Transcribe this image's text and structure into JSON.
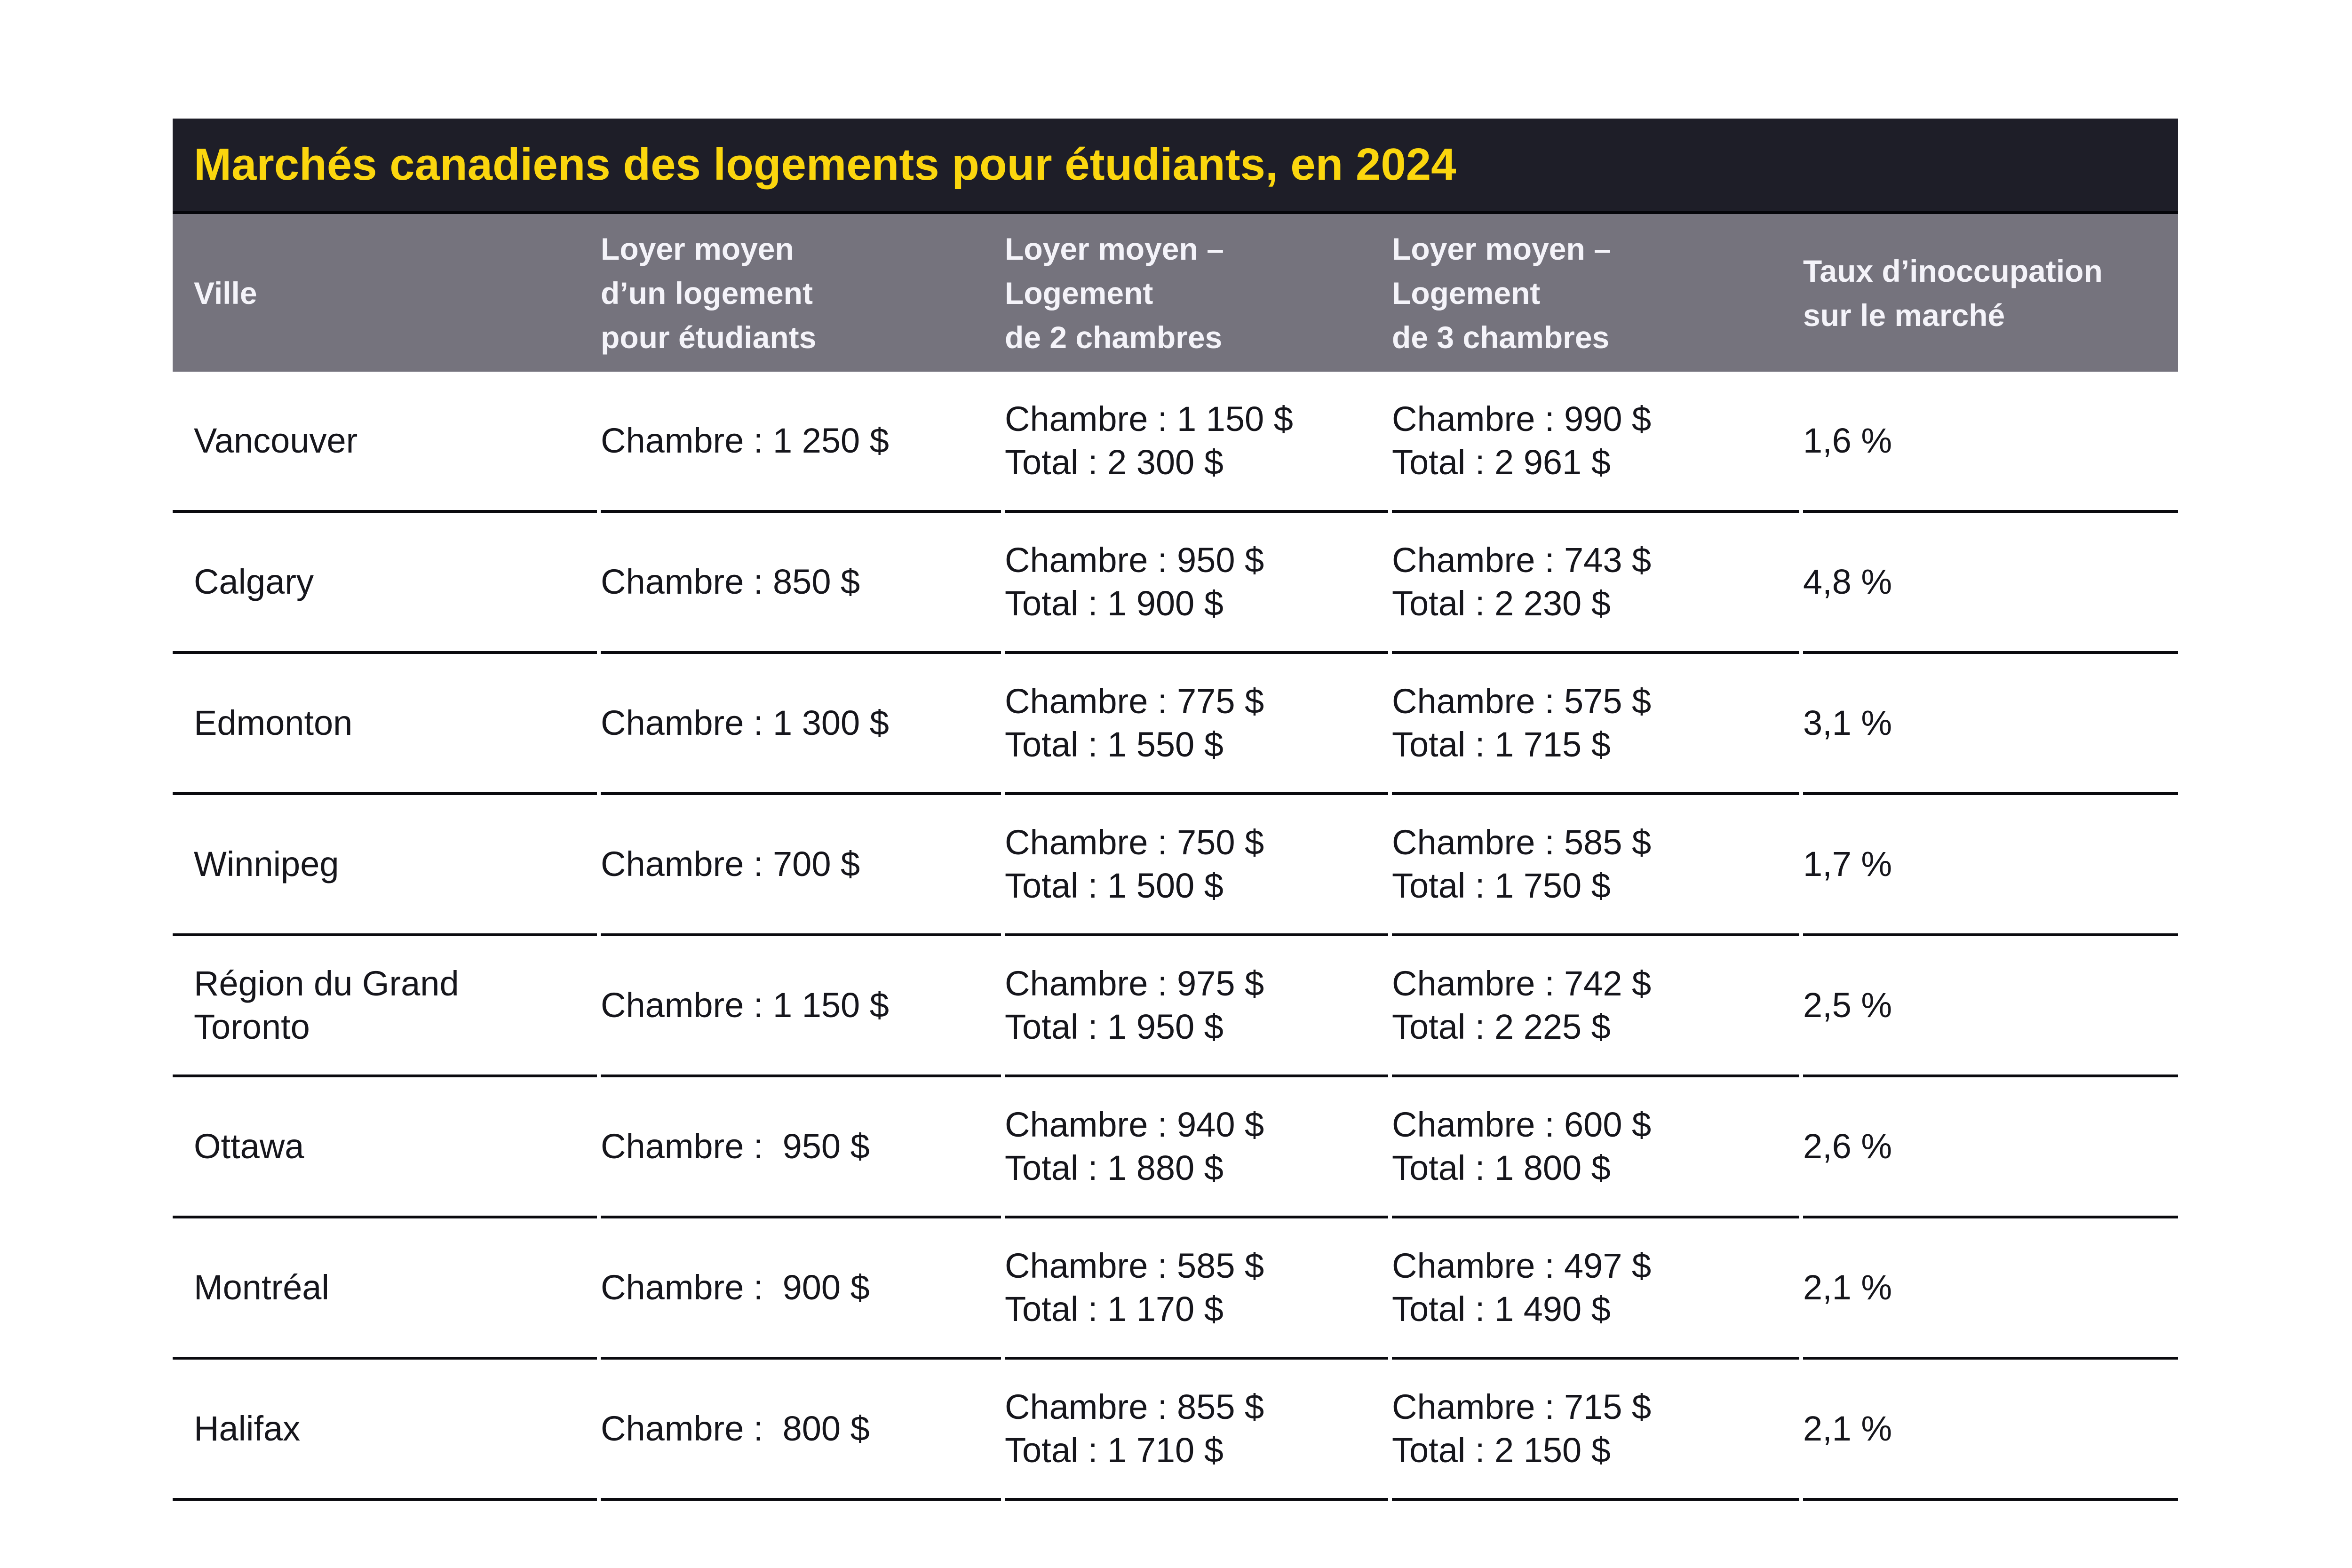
{
  "colors": {
    "dark_bg": "#1e1e28",
    "accent_yellow": "#fbd60e",
    "header_bg": "#75737d",
    "header_text": "#f4f3f9",
    "body_text": "#16161c",
    "rule_color": "#0a0a0f"
  },
  "title": "Marchés canadiens des logements pour étudiants, en 2024",
  "table": {
    "columns": [
      "Ville",
      "Loyer moyen\nd’un logement\npour étudiants",
      "Loyer moyen –\nLogement\nde 2 chambres",
      "Loyer moyen –\nLogement\nde 3 chambres",
      "Taux d’inoccupation\nsur le marché"
    ],
    "rows": [
      {
        "city": "Vancouver",
        "student_rent": "Chambre : 1 250 $",
        "two_bedroom": "Chambre : 1 150 $\nTotal : 2 300 $",
        "three_bedroom": "Chambre : 990 $\nTotal : 2 961 $",
        "vacancy": "1,6 %"
      },
      {
        "city": "Calgary",
        "student_rent": "Chambre : 850 $",
        "two_bedroom": "Chambre : 950 $\nTotal : 1 900 $",
        "three_bedroom": "Chambre : 743 $\nTotal : 2 230 $",
        "vacancy": "4,8 %"
      },
      {
        "city": "Edmonton",
        "student_rent": "Chambre : 1 300 $",
        "two_bedroom": "Chambre : 775 $\nTotal : 1 550 $",
        "three_bedroom": "Chambre : 575 $\nTotal : 1 715 $",
        "vacancy": "3,1 %"
      },
      {
        "city": "Winnipeg",
        "student_rent": "Chambre : 700 $",
        "two_bedroom": "Chambre : 750 $\nTotal : 1 500 $",
        "three_bedroom": "Chambre : 585 $\nTotal : 1 750 $",
        "vacancy": "1,7 %"
      },
      {
        "city": "Région du Grand\nToronto",
        "student_rent": "Chambre : 1 150 $",
        "two_bedroom": "Chambre : 975 $\nTotal : 1 950 $",
        "three_bedroom": "Chambre : 742 $\nTotal : 2 225 $",
        "vacancy": "2,5 %"
      },
      {
        "city": "Ottawa",
        "student_rent": "Chambre :  950 $",
        "two_bedroom": "Chambre : 940 $\nTotal : 1 880 $",
        "three_bedroom": "Chambre : 600 $\nTotal : 1 800 $",
        "vacancy": "2,6 %"
      },
      {
        "city": "Montréal",
        "student_rent": "Chambre :  900 $",
        "two_bedroom": "Chambre : 585 $\nTotal : 1 170 $",
        "three_bedroom": "Chambre : 497 $\nTotal : 1 490 $",
        "vacancy": "2,1 %"
      },
      {
        "city": "Halifax",
        "student_rent": "Chambre :  800 $",
        "two_bedroom": "Chambre : 855 $\nTotal : 1 710 $",
        "three_bedroom": "Chambre : 715 $\nTotal : 2 150 $",
        "vacancy": "2,1 %"
      }
    ]
  },
  "chart_data": {
    "type": "table",
    "title": "Marchés canadiens des logements pour étudiants, en 2024",
    "columns": [
      "Ville",
      "Loyer moyen d’un logement pour étudiants",
      "Loyer moyen – Logement de 2 chambres",
      "Loyer moyen – Logement de 3 chambres",
      "Taux d’inoccupation sur le marché"
    ],
    "currency": "$",
    "rows": [
      {
        "ville": "Vancouver",
        "loyer_etudiant_chambre": 1250,
        "deux_chambres": {
          "chambre": 1150,
          "total": 2300
        },
        "trois_chambres": {
          "chambre": 990,
          "total": 2961
        },
        "taux_inoccupation_pct": 1.6
      },
      {
        "ville": "Calgary",
        "loyer_etudiant_chambre": 850,
        "deux_chambres": {
          "chambre": 950,
          "total": 1900
        },
        "trois_chambres": {
          "chambre": 743,
          "total": 2230
        },
        "taux_inoccupation_pct": 4.8
      },
      {
        "ville": "Edmonton",
        "loyer_etudiant_chambre": 1300,
        "deux_chambres": {
          "chambre": 775,
          "total": 1550
        },
        "trois_chambres": {
          "chambre": 575,
          "total": 1715
        },
        "taux_inoccupation_pct": 3.1
      },
      {
        "ville": "Winnipeg",
        "loyer_etudiant_chambre": 700,
        "deux_chambres": {
          "chambre": 750,
          "total": 1500
        },
        "trois_chambres": {
          "chambre": 585,
          "total": 1750
        },
        "taux_inoccupation_pct": 1.7
      },
      {
        "ville": "Région du Grand Toronto",
        "loyer_etudiant_chambre": 1150,
        "deux_chambres": {
          "chambre": 975,
          "total": 1950
        },
        "trois_chambres": {
          "chambre": 742,
          "total": 2225
        },
        "taux_inoccupation_pct": 2.5
      },
      {
        "ville": "Ottawa",
        "loyer_etudiant_chambre": 950,
        "deux_chambres": {
          "chambre": 940,
          "total": 1880
        },
        "trois_chambres": {
          "chambre": 600,
          "total": 1800
        },
        "taux_inoccupation_pct": 2.6
      },
      {
        "ville": "Montréal",
        "loyer_etudiant_chambre": 900,
        "deux_chambres": {
          "chambre": 585,
          "total": 1170
        },
        "trois_chambres": {
          "chambre": 497,
          "total": 1490
        },
        "taux_inoccupation_pct": 2.1
      },
      {
        "ville": "Halifax",
        "loyer_etudiant_chambre": 800,
        "deux_chambres": {
          "chambre": 855,
          "total": 1710
        },
        "trois_chambres": {
          "chambre": 715,
          "total": 2150
        },
        "taux_inoccupation_pct": 2.1
      }
    ]
  }
}
